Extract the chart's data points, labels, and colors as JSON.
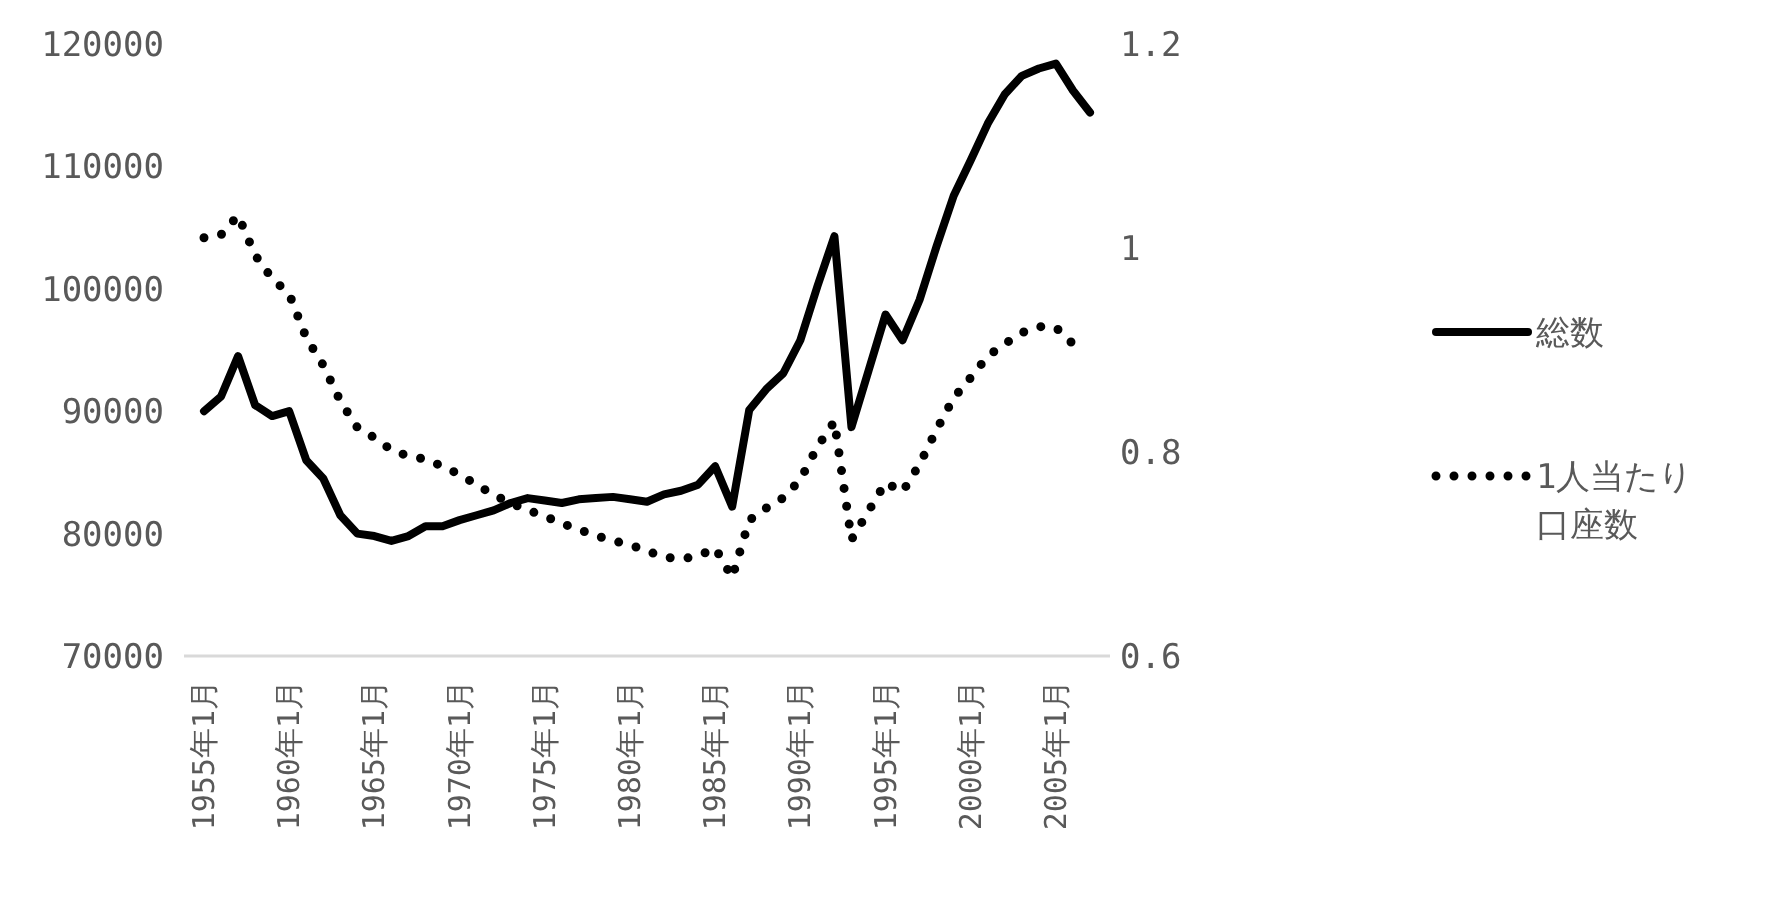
{
  "chart_data": {
    "type": "line",
    "categories": [
      "1955年1月",
      null,
      null,
      null,
      null,
      "1960年1月",
      null,
      null,
      null,
      null,
      "1965年1月",
      null,
      null,
      null,
      null,
      "1970年1月",
      null,
      null,
      null,
      null,
      "1975年1月",
      null,
      null,
      null,
      null,
      "1980年1月",
      null,
      null,
      null,
      null,
      "1985年1月",
      null,
      null,
      null,
      null,
      "1990年1月",
      null,
      null,
      null,
      null,
      "1995年1月",
      null,
      null,
      null,
      null,
      "2000年1月",
      null,
      null,
      null,
      null,
      "2005年1月",
      null,
      null
    ],
    "series": [
      {
        "name": "総数",
        "color": "#000000",
        "line_style": "solid",
        "values": [
          90000,
          91200,
          94500,
          90500,
          89600,
          90000,
          86000,
          84500,
          81500,
          80000,
          79800,
          79400,
          79800,
          80600,
          80600,
          81100,
          81500,
          81900,
          82500,
          82900,
          82700,
          82500,
          82800,
          82900,
          83000,
          82800,
          82600,
          83200,
          83500,
          84000,
          85500,
          82200,
          90100,
          91800,
          93100,
          95800,
          100200,
          104300,
          88700,
          93300,
          97900,
          95800,
          99100,
          103500,
          107600,
          110500,
          113500,
          115900,
          117400,
          118000,
          118400,
          116200,
          114400
        ]
      },
      {
        "name": "1人当たり口座数",
        "color": "#000000",
        "line_style": "dotted",
        "axis": "y2",
        "values": [
          1.01,
          1.013,
          1.032,
          0.993,
          0.97,
          0.955,
          0.912,
          0.885,
          0.85,
          0.824,
          0.814,
          0.802,
          0.796,
          0.793,
          0.786,
          0.778,
          0.768,
          0.758,
          0.75,
          0.743,
          0.737,
          0.73,
          0.724,
          0.718,
          0.713,
          0.709,
          0.703,
          0.697,
          0.695,
          0.698,
          0.706,
          0.677,
          0.733,
          0.745,
          0.755,
          0.773,
          0.805,
          0.83,
          0.714,
          0.742,
          0.77,
          0.761,
          0.788,
          0.822,
          0.853,
          0.873,
          0.894,
          0.906,
          0.917,
          0.923,
          0.922,
          0.906,
          null
        ]
      }
    ],
    "ylim": [
      70000,
      120000
    ],
    "yticks": [
      70000,
      80000,
      90000,
      100000,
      110000,
      120000
    ],
    "y2lim": [
      0.6,
      1.2
    ],
    "y2ticks": [
      0.6,
      0.8,
      1,
      1.2
    ],
    "legend": "right"
  }
}
